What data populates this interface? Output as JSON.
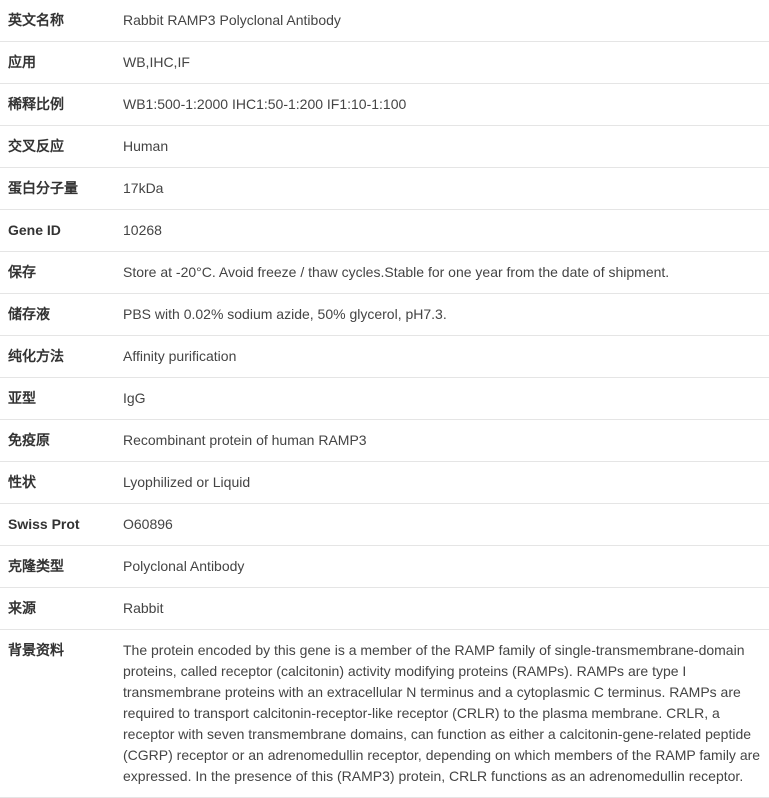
{
  "style": {
    "label_width": 115,
    "font_size": 14,
    "font_family": "Microsoft YaHei, SimSun, Arial, sans-serif",
    "text_color": "#333333",
    "value_color": "#444444",
    "border_color": "#e5e5e5",
    "background": "#ffffff",
    "row_padding": "10px 8px",
    "label_weight": "bold"
  },
  "rows": [
    {
      "label": "英文名称",
      "value": "Rabbit RAMP3 Polyclonal Antibody"
    },
    {
      "label": "应用",
      "value": "WB,IHC,IF"
    },
    {
      "label": "稀释比例",
      "value": "WB1:500-1:2000 IHC1:50-1:200 IF1:10-1:100"
    },
    {
      "label": "交叉反应",
      "value": "Human"
    },
    {
      "label": "蛋白分子量",
      "value": "17kDa"
    },
    {
      "label": "Gene ID",
      "value": "10268"
    },
    {
      "label": "保存",
      "value": "Store at -20°C. Avoid freeze / thaw cycles.Stable for one year from the date of shipment."
    },
    {
      "label": "储存液",
      "value": "PBS with 0.02% sodium azide, 50% glycerol, pH7.3."
    },
    {
      "label": "纯化方法",
      "value": "Affinity purification"
    },
    {
      "label": "亚型",
      "value": "IgG"
    },
    {
      "label": "免疫原",
      "value": "Recombinant protein of human RAMP3"
    },
    {
      "label": "性状",
      "value": "Lyophilized or Liquid"
    },
    {
      "label": "Swiss Prot",
      "value": "O60896"
    },
    {
      "label": "克隆类型",
      "value": "Polyclonal Antibody"
    },
    {
      "label": "来源",
      "value": "Rabbit"
    },
    {
      "label": "背景资料",
      "value": "The protein encoded by this gene is a member of the RAMP family of single-transmembrane-domain proteins, called receptor (calcitonin) activity modifying proteins (RAMPs). RAMPs are type I transmembrane proteins with an extracellular N terminus and a cytoplasmic C terminus. RAMPs are required to transport calcitonin-receptor-like receptor (CRLR) to the plasma membrane. CRLR, a receptor with seven transmembrane domains, can function as either a calcitonin-gene-related peptide (CGRP) receptor or an adrenomedullin receptor, depending on which members of the RAMP family are expressed. In the presence of this (RAMP3) protein, CRLR functions as an adrenomedullin receptor."
    }
  ]
}
